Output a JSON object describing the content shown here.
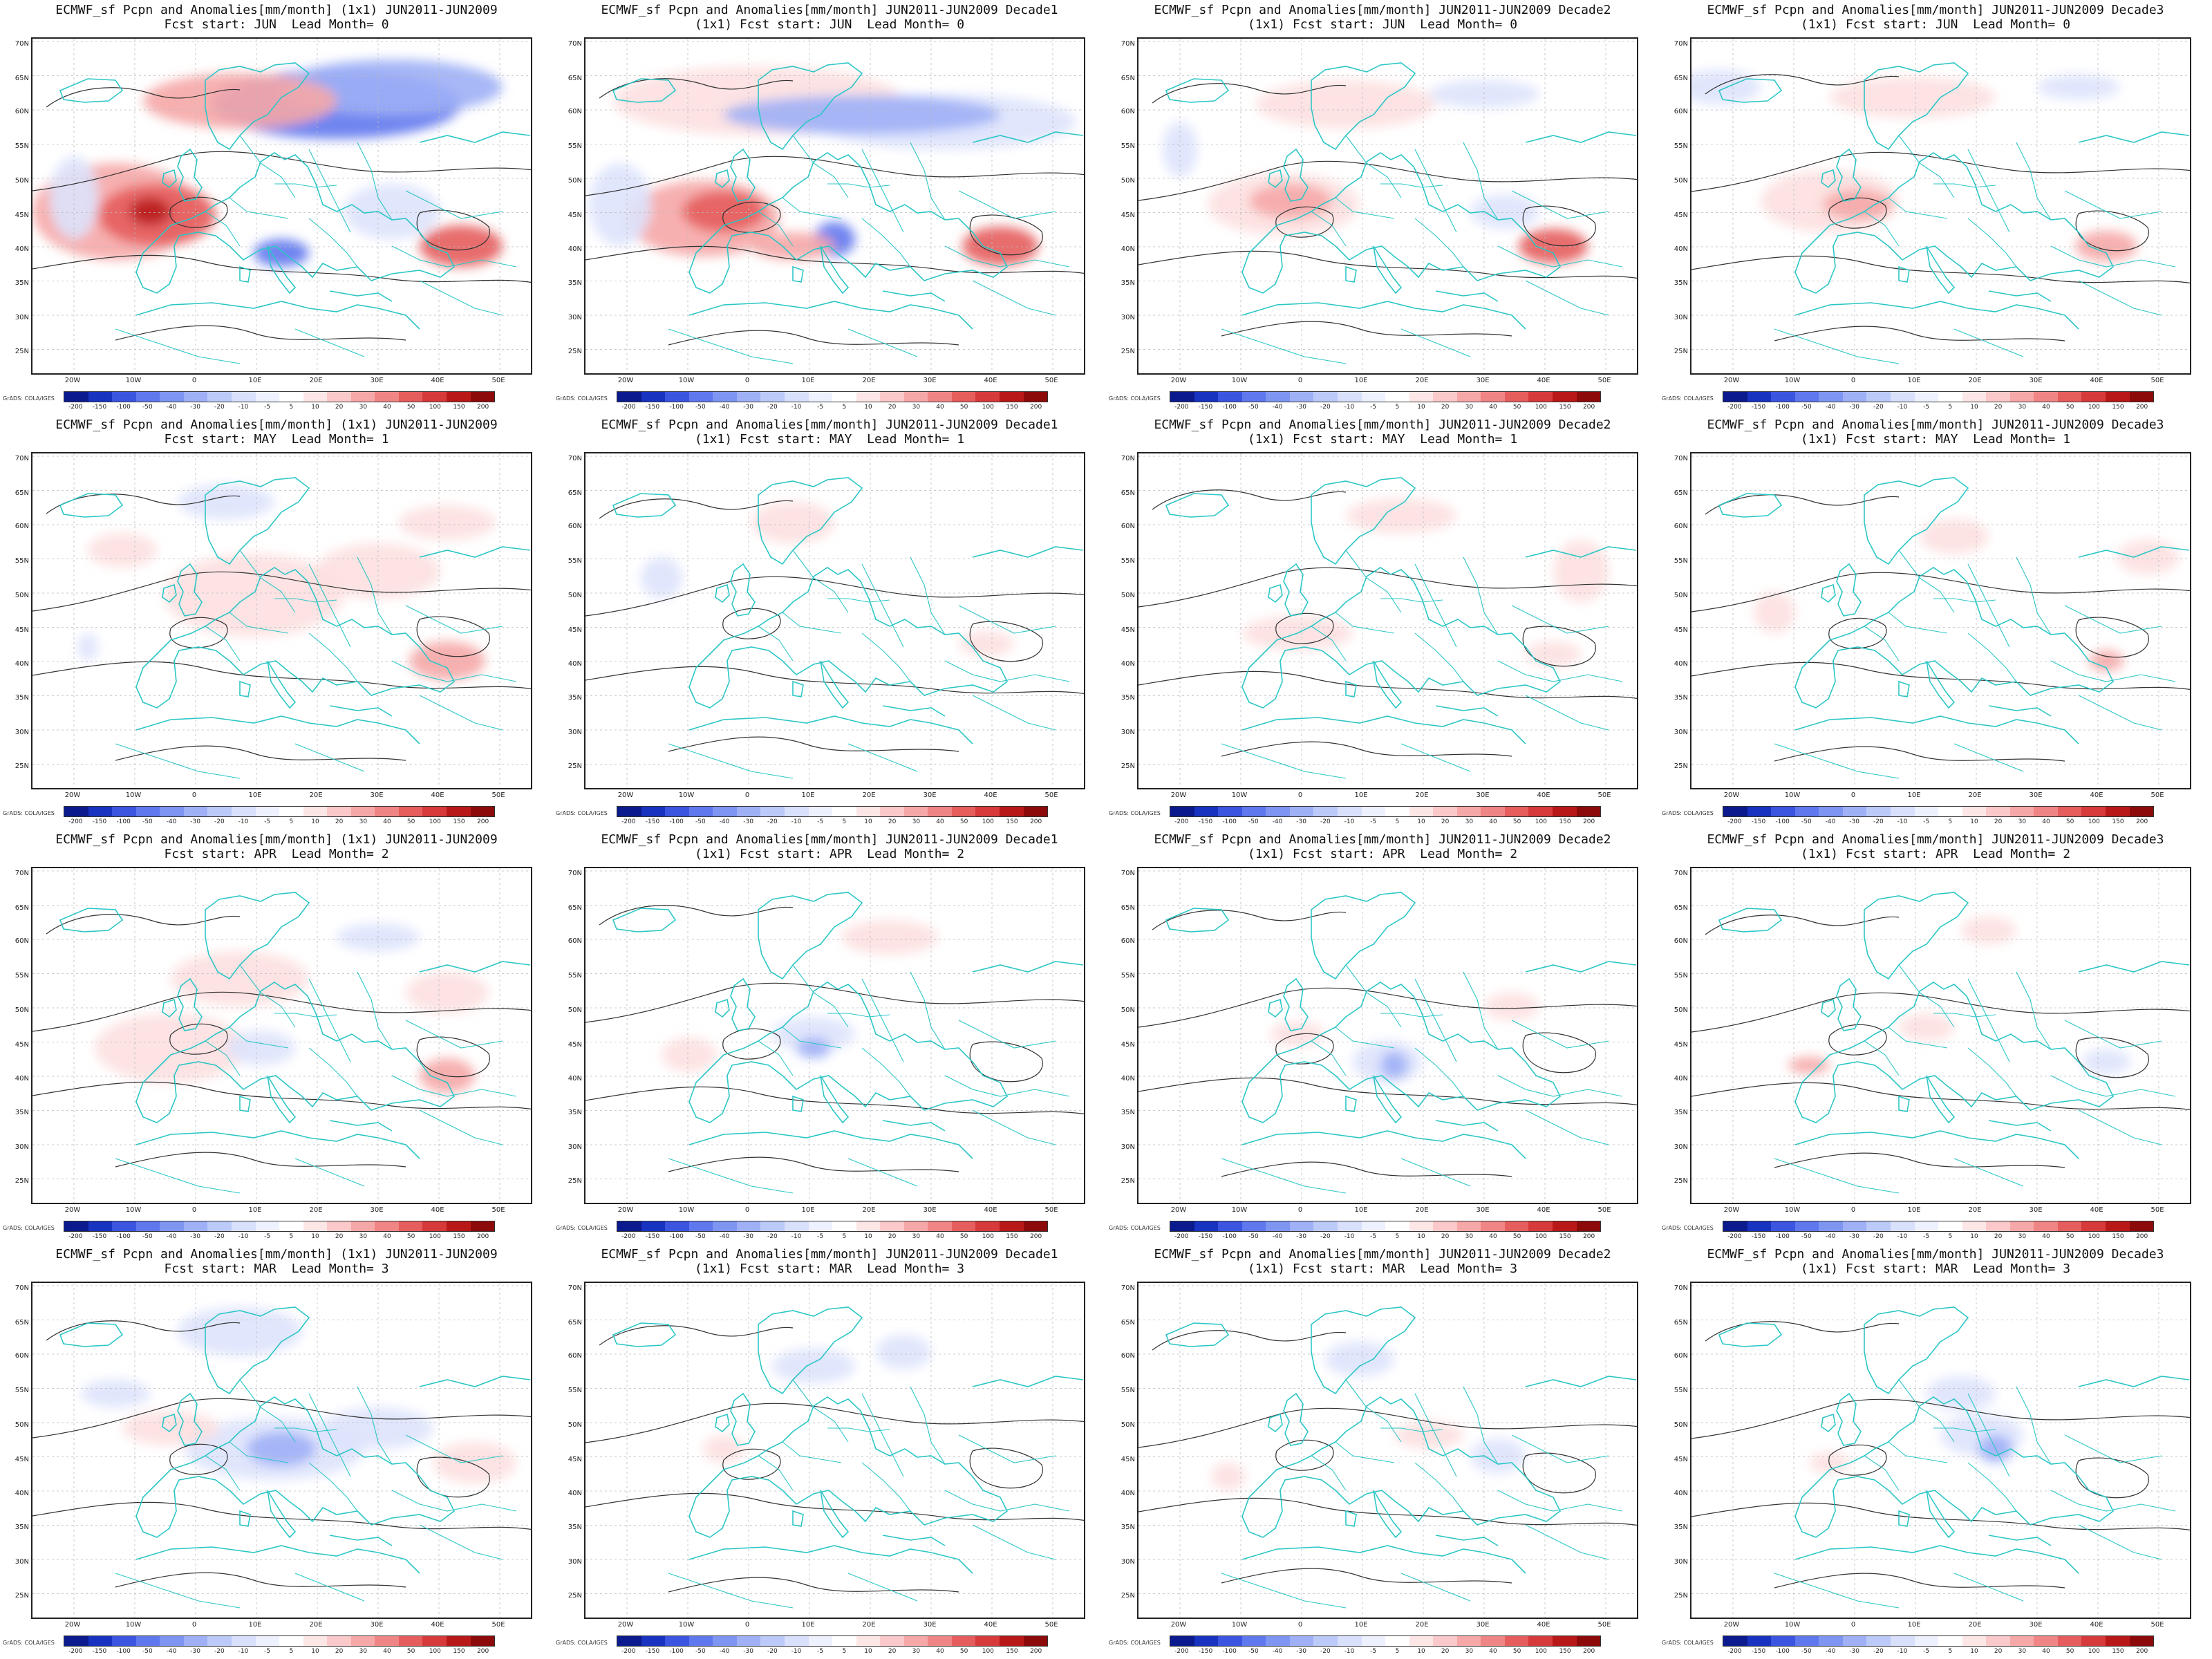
{
  "figure": {
    "lat_ticks": [
      "70N",
      "65N",
      "60N",
      "55N",
      "50N",
      "45N",
      "40N",
      "35N",
      "30N",
      "25N"
    ],
    "lon_ticks": [
      "20W",
      "10W",
      "0",
      "10E",
      "20E",
      "30E",
      "40E",
      "50E"
    ],
    "colorbar_labels": [
      "-200",
      "-150",
      "-100",
      "-50",
      "-40",
      "-30",
      "-20",
      "-10",
      "-5",
      "5",
      "10",
      "20",
      "30",
      "40",
      "50",
      "100",
      "150",
      "200"
    ],
    "colorbar_colors": [
      "#0b1a8c",
      "#1833c0",
      "#3b55e0",
      "#5f78ee",
      "#7f95f2",
      "#9fb0f6",
      "#bccaf9",
      "#d8e0fc",
      "#eef1fe",
      "#ffffff",
      "#fde6e6",
      "#fbc9c9",
      "#f6a7a7",
      "#f08585",
      "#e65d5d",
      "#d63a3a",
      "#b81818",
      "#8c0a0a"
    ],
    "credit": "GrADS: COLA/IGES",
    "panels": [
      {
        "title1": "ECMWF_sf Pcpn and Anomalies[mm/month] (1x1) JUN2011-JUN2009",
        "title2": "Fcst start: JUN  Lead Month= 0",
        "intensity": 1.0
      },
      {
        "title1": "ECMWF_sf Pcpn and Anomalies[mm/month] JUN2011-JUN2009 Decade1",
        "title2": "(1x1) Fcst start: JUN  Lead Month= 0",
        "intensity": 0.85
      },
      {
        "title1": "ECMWF_sf Pcpn and Anomalies[mm/month] JUN2011-JUN2009 Decade2",
        "title2": "(1x1) Fcst start: JUN  Lead Month= 0",
        "intensity": 0.55
      },
      {
        "title1": "ECMWF_sf Pcpn and Anomalies[mm/month] JUN2011-JUN2009 Decade3",
        "title2": "(1x1) Fcst start: JUN  Lead Month= 0",
        "intensity": 0.55
      },
      {
        "title1": "ECMWF_sf Pcpn and Anomalies[mm/month] (1x1) JUN2011-JUN2009",
        "title2": "Fcst start: MAY  Lead Month= 1",
        "intensity": 0.5
      },
      {
        "title1": "ECMWF_sf Pcpn and Anomalies[mm/month] JUN2011-JUN2009 Decade1",
        "title2": "(1x1) Fcst start: MAY  Lead Month= 1",
        "intensity": 0.25
      },
      {
        "title1": "ECMWF_sf Pcpn and Anomalies[mm/month] JUN2011-JUN2009 Decade2",
        "title2": "(1x1) Fcst start: MAY  Lead Month= 1",
        "intensity": 0.3
      },
      {
        "title1": "ECMWF_sf Pcpn and Anomalies[mm/month] JUN2011-JUN2009 Decade3",
        "title2": "(1x1) Fcst start: MAY  Lead Month= 1",
        "intensity": 0.3
      },
      {
        "title1": "ECMWF_sf Pcpn and Anomalies[mm/month] (1x1) JUN2011-JUN2009",
        "title2": "Fcst start: APR  Lead Month= 2",
        "intensity": 0.4
      },
      {
        "title1": "ECMWF_sf Pcpn and Anomalies[mm/month] JUN2011-JUN2009 Decade1",
        "title2": "(1x1) Fcst start: APR  Lead Month= 2",
        "intensity": 0.25
      },
      {
        "title1": "ECMWF_sf Pcpn and Anomalies[mm/month] JUN2011-JUN2009 Decade2",
        "title2": "(1x1) Fcst start: APR  Lead Month= 2",
        "intensity": 0.2
      },
      {
        "title1": "ECMWF_sf Pcpn and Anomalies[mm/month] JUN2011-JUN2009 Decade3",
        "title2": "(1x1) Fcst start: APR  Lead Month= 2",
        "intensity": 0.25
      },
      {
        "title1": "ECMWF_sf Pcpn and Anomalies[mm/month] (1x1) JUN2011-JUN2009",
        "title2": "Fcst start: MAR  Lead Month= 3",
        "intensity": 0.35
      },
      {
        "title1": "ECMWF_sf Pcpn and Anomalies[mm/month] JUN2011-JUN2009 Decade1",
        "title2": "(1x1) Fcst start: MAR  Lead Month= 3",
        "intensity": 0.2
      },
      {
        "title1": "ECMWF_sf Pcpn and Anomalies[mm/month] JUN2011-JUN2009 Decade2",
        "title2": "(1x1) Fcst start: MAR  Lead Month= 3",
        "intensity": 0.2
      },
      {
        "title1": "ECMWF_sf Pcpn and Anomalies[mm/month] JUN2011-JUN2009 Decade3",
        "title2": "(1x1) Fcst start: MAR  Lead Month= 3",
        "intensity": 0.2
      }
    ]
  }
}
